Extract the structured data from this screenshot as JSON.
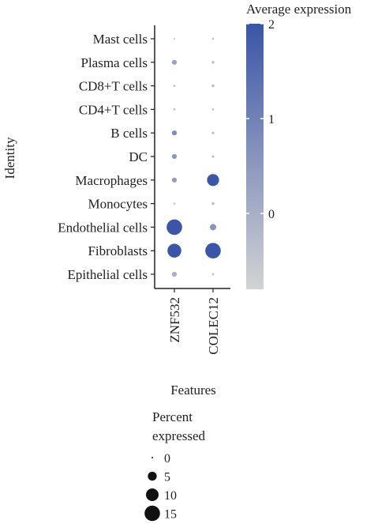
{
  "chart_data": {
    "type": "dotplot",
    "xlabel": "Features",
    "ylabel": "Identity",
    "features": [
      "ZNF532",
      "COLEC12"
    ],
    "identities": [
      "Mast cells",
      "Plasma cells",
      "CD8+T cells",
      "CD4+T cells",
      "B cells",
      "DC",
      "Macrophages",
      "Monocytes",
      "Endothelial cells",
      "Fibroblasts",
      "Epithelial cells"
    ],
    "points": [
      {
        "identity": "Mast cells",
        "feature": "ZNF532",
        "pct_expressed": 0.2,
        "avg_expression": -0.6
      },
      {
        "identity": "Mast cells",
        "feature": "COLEC12",
        "pct_expressed": 0.3,
        "avg_expression": -0.5
      },
      {
        "identity": "Plasma cells",
        "feature": "ZNF532",
        "pct_expressed": 1.5,
        "avg_expression": 0.3
      },
      {
        "identity": "Plasma cells",
        "feature": "COLEC12",
        "pct_expressed": 0.5,
        "avg_expression": -0.4
      },
      {
        "identity": "CD8+T cells",
        "feature": "ZNF532",
        "pct_expressed": 0.3,
        "avg_expression": -0.4
      },
      {
        "identity": "CD8+T cells",
        "feature": "COLEC12",
        "pct_expressed": 0.5,
        "avg_expression": -0.3
      },
      {
        "identity": "CD4+T cells",
        "feature": "ZNF532",
        "pct_expressed": 0.3,
        "avg_expression": -0.4
      },
      {
        "identity": "CD4+T cells",
        "feature": "COLEC12",
        "pct_expressed": 0.3,
        "avg_expression": -0.4
      },
      {
        "identity": "B cells",
        "feature": "ZNF532",
        "pct_expressed": 1.5,
        "avg_expression": 0.8
      },
      {
        "identity": "B cells",
        "feature": "COLEC12",
        "pct_expressed": 0.4,
        "avg_expression": -0.4
      },
      {
        "identity": "DC",
        "feature": "ZNF532",
        "pct_expressed": 1.5,
        "avg_expression": 0.5
      },
      {
        "identity": "DC",
        "feature": "COLEC12",
        "pct_expressed": 0.4,
        "avg_expression": -0.4
      },
      {
        "identity": "Macrophages",
        "feature": "ZNF532",
        "pct_expressed": 1.5,
        "avg_expression": 0.4
      },
      {
        "identity": "Macrophages",
        "feature": "COLEC12",
        "pct_expressed": 9,
        "avg_expression": 2.0
      },
      {
        "identity": "Monocytes",
        "feature": "ZNF532",
        "pct_expressed": 0.3,
        "avg_expression": -0.5
      },
      {
        "identity": "Monocytes",
        "feature": "COLEC12",
        "pct_expressed": 0.5,
        "avg_expression": -0.4
      },
      {
        "identity": "Endothelial cells",
        "feature": "ZNF532",
        "pct_expressed": 15,
        "avg_expression": 2.0
      },
      {
        "identity": "Endothelial cells",
        "feature": "COLEC12",
        "pct_expressed": 2.5,
        "avg_expression": 0.6
      },
      {
        "identity": "Fibroblasts",
        "feature": "ZNF532",
        "pct_expressed": 12,
        "avg_expression": 2.0
      },
      {
        "identity": "Fibroblasts",
        "feature": "COLEC12",
        "pct_expressed": 15,
        "avg_expression": 2.0
      },
      {
        "identity": "Epithelial cells",
        "feature": "ZNF532",
        "pct_expressed": 1.5,
        "avg_expression": 0.0
      },
      {
        "identity": "Epithelial cells",
        "feature": "COLEC12",
        "pct_expressed": 0.3,
        "avg_expression": -0.4
      }
    ],
    "color_legend": {
      "title": "Average expression",
      "ticks": [
        2,
        1,
        0
      ],
      "range": [
        -0.8,
        2
      ],
      "color_low": "#d3d3d3",
      "color_high": "#3b55a7"
    },
    "size_legend": {
      "title": [
        "Percent",
        "expressed"
      ],
      "values": [
        0,
        5,
        10,
        15
      ]
    }
  }
}
